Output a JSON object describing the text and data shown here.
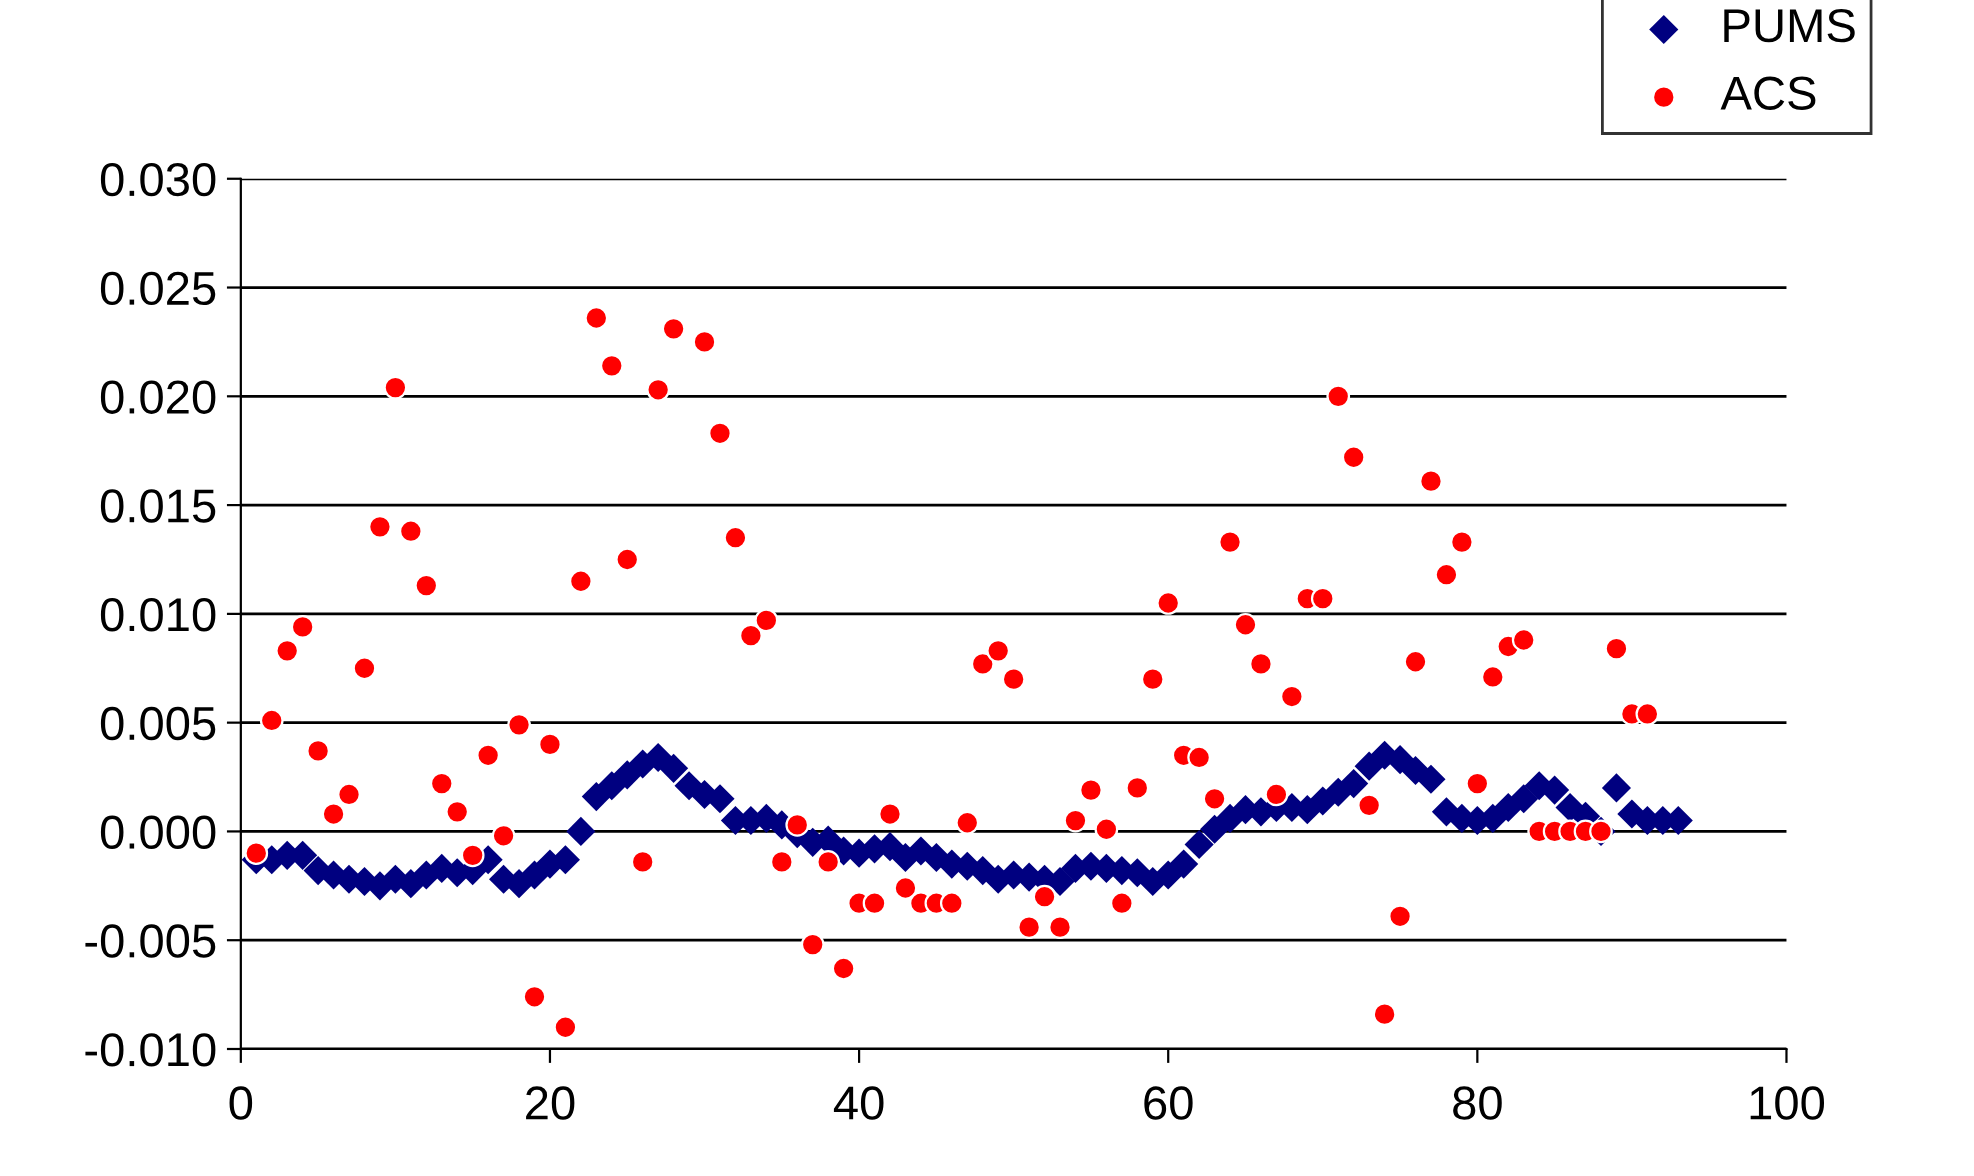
{
  "chart_data": {
    "type": "scatter",
    "series": [
      {
        "name": "PUMS",
        "color": "#000080",
        "marker": "diamond",
        "x": [
          1,
          2,
          3,
          4,
          5,
          6,
          7,
          8,
          9,
          10,
          11,
          12,
          13,
          14,
          15,
          16,
          17,
          18,
          19,
          20,
          21,
          22,
          23,
          24,
          25,
          26,
          27,
          28,
          29,
          30,
          31,
          32,
          33,
          34,
          35,
          36,
          37,
          38,
          39,
          40,
          41,
          42,
          43,
          44,
          45,
          46,
          47,
          48,
          49,
          50,
          51,
          52,
          53,
          54,
          55,
          56,
          57,
          58,
          59,
          60,
          61,
          62,
          63,
          64,
          65,
          66,
          67,
          68,
          69,
          70,
          71,
          72,
          73,
          74,
          75,
          76,
          77,
          78,
          79,
          80,
          81,
          82,
          83,
          84,
          85,
          86,
          87,
          88,
          89,
          90,
          91,
          92,
          93
        ],
        "values": [
          -0.0013,
          -0.0013,
          -0.0011,
          -0.0011,
          -0.0018,
          -0.002,
          -0.0022,
          -0.0023,
          -0.0025,
          -0.0022,
          -0.0024,
          -0.002,
          -0.0017,
          -0.0019,
          -0.0018,
          -0.0013,
          -0.0022,
          -0.0024,
          -0.002,
          -0.0015,
          -0.0013,
          0.0,
          0.0016,
          0.0021,
          0.0026,
          0.0031,
          0.0034,
          0.0029,
          0.0021,
          0.0017,
          0.0015,
          0.0005,
          0.0005,
          0.0006,
          0.0003,
          -0.0001,
          -0.0005,
          -0.0004,
          -0.0009,
          -0.001,
          -0.0008,
          -0.0007,
          -0.0012,
          -0.0009,
          -0.0012,
          -0.0015,
          -0.0016,
          -0.0018,
          -0.0022,
          -0.002,
          -0.0021,
          -0.0022,
          -0.0023,
          -0.0017,
          -0.0016,
          -0.0017,
          -0.0018,
          -0.0019,
          -0.0023,
          -0.002,
          -0.0015,
          -0.0006,
          0.0001,
          0.0006,
          0.001,
          0.0009,
          0.0011,
          0.0011,
          0.001,
          0.0014,
          0.0018,
          0.0022,
          0.003,
          0.0035,
          0.0033,
          0.0028,
          0.0024,
          0.0009,
          0.0006,
          0.0005,
          0.0006,
          0.0011,
          0.0015,
          0.0021,
          0.0019,
          0.0011,
          0.0007,
          0.0,
          0.002,
          0.0008,
          0.0005,
          0.0005,
          0.0005
        ]
      },
      {
        "name": "ACS",
        "color": "#ff0000",
        "marker": "circle",
        "x": [
          1,
          2,
          3,
          4,
          5,
          6,
          7,
          8,
          9,
          10,
          11,
          12,
          13,
          14,
          15,
          16,
          17,
          18,
          19,
          20,
          21,
          22,
          23,
          24,
          25,
          26,
          27,
          28,
          30,
          31,
          32,
          33,
          34,
          35,
          36,
          37,
          38,
          39,
          40,
          41,
          42,
          43,
          44,
          45,
          46,
          47,
          48,
          49,
          50,
          51,
          52,
          53,
          54,
          55,
          56,
          57,
          58,
          59,
          60,
          61,
          62,
          63,
          64,
          65,
          66,
          67,
          68,
          69,
          70,
          71,
          72,
          73,
          74,
          75,
          76,
          77,
          78,
          79,
          80,
          81,
          82,
          83,
          84,
          85,
          86,
          87,
          88,
          89,
          90,
          91
        ],
        "values": [
          -0.001,
          0.0051,
          0.0083,
          0.0094,
          0.0037,
          0.0008,
          0.0017,
          0.0075,
          0.014,
          0.0204,
          0.0138,
          0.0113,
          0.0022,
          0.0009,
          -0.0011,
          0.0035,
          -0.0002,
          0.0049,
          -0.0076,
          0.004,
          -0.009,
          0.0115,
          0.0236,
          0.0214,
          0.0125,
          -0.0014,
          0.0203,
          0.0231,
          0.0225,
          0.0183,
          0.0135,
          0.009,
          0.0097,
          -0.0014,
          0.0003,
          -0.0052,
          -0.0014,
          -0.0063,
          -0.0033,
          -0.0033,
          0.0008,
          -0.0026,
          -0.0033,
          -0.0033,
          -0.0033,
          0.0004,
          0.0077,
          0.0083,
          0.007,
          -0.0044,
          -0.003,
          -0.0044,
          0.0005,
          0.0019,
          0.0001,
          -0.0033,
          0.002,
          0.007,
          0.0105,
          0.0035,
          0.0034,
          0.0015,
          0.0133,
          0.0095,
          0.0077,
          0.0017,
          0.0062,
          0.0107,
          0.0107,
          0.02,
          0.0172,
          0.0012,
          -0.0084,
          -0.0039,
          0.0078,
          0.0161,
          0.0118,
          0.0133,
          0.0022,
          0.0071,
          0.0085,
          0.0088,
          0.0,
          0.0,
          0.0,
          0.0,
          0.0,
          0.0084,
          0.0054,
          0.0054
        ]
      }
    ],
    "xlim": [
      0,
      100
    ],
    "xticks": [
      0,
      20,
      40,
      60,
      80,
      100
    ],
    "ylim": [
      -0.01,
      0.03
    ],
    "yticks": [
      {
        "value": -0.01,
        "label": "-0.010"
      },
      {
        "value": -0.005,
        "label": "-0.005"
      },
      {
        "value": 0,
        "label": "0.000"
      },
      {
        "value": 0.005,
        "label": "0.005"
      },
      {
        "value": 0.01,
        "label": "0.010"
      },
      {
        "value": 0.015,
        "label": "0.015"
      },
      {
        "value": 0.02,
        "label": "0.020"
      },
      {
        "value": 0.025,
        "label": "0.025"
      },
      {
        "value": 0.03,
        "label": "0.030"
      }
    ],
    "grid": "y",
    "legend": "top right"
  }
}
